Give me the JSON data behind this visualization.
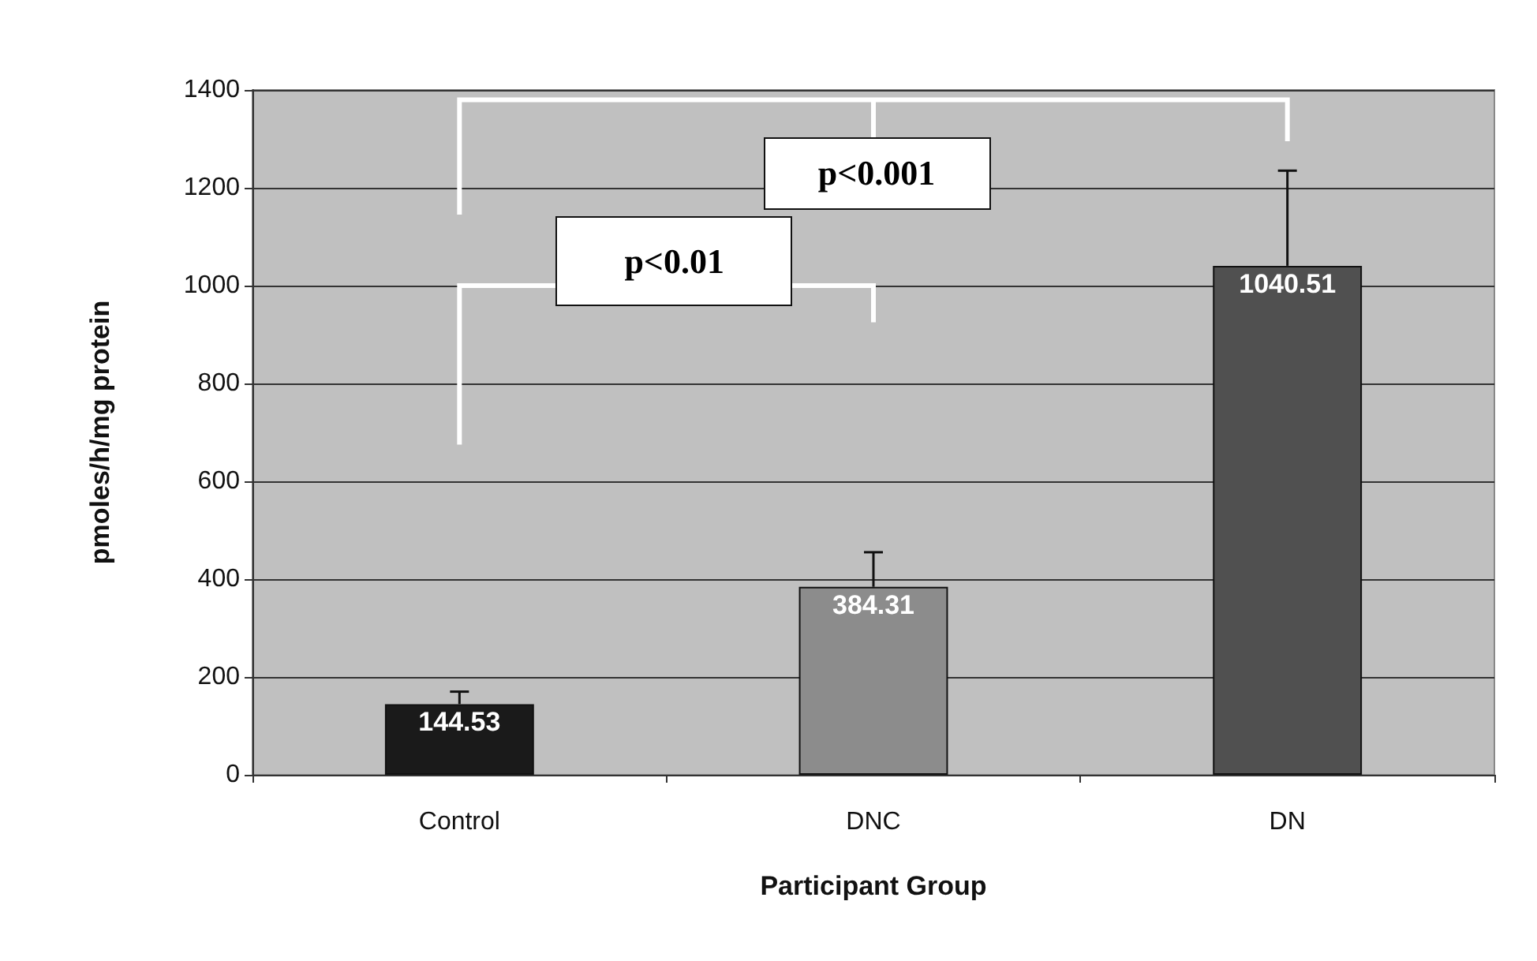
{
  "chart_data": {
    "type": "bar",
    "xlabel": "Participant Group",
    "ylabel": "pmoles/h/mg protein",
    "categories": [
      "Control",
      "DNC",
      "DN"
    ],
    "values": [
      144.53,
      384.31,
      1040.51
    ],
    "colors": [
      "#1a1a1a",
      "#8c8c8c",
      "#505050"
    ],
    "errors": [
      [
        144.53,
        170
      ],
      [
        384.31,
        455
      ],
      [
        1040.51,
        1235
      ]
    ],
    "data_labels": true,
    "ylim": [
      0,
      1400
    ],
    "yticks": [
      0,
      200,
      400,
      600,
      800,
      1000,
      1200,
      1400
    ],
    "grid": "y",
    "annotations": [
      "p<0.01",
      "p<0.001"
    ]
  }
}
